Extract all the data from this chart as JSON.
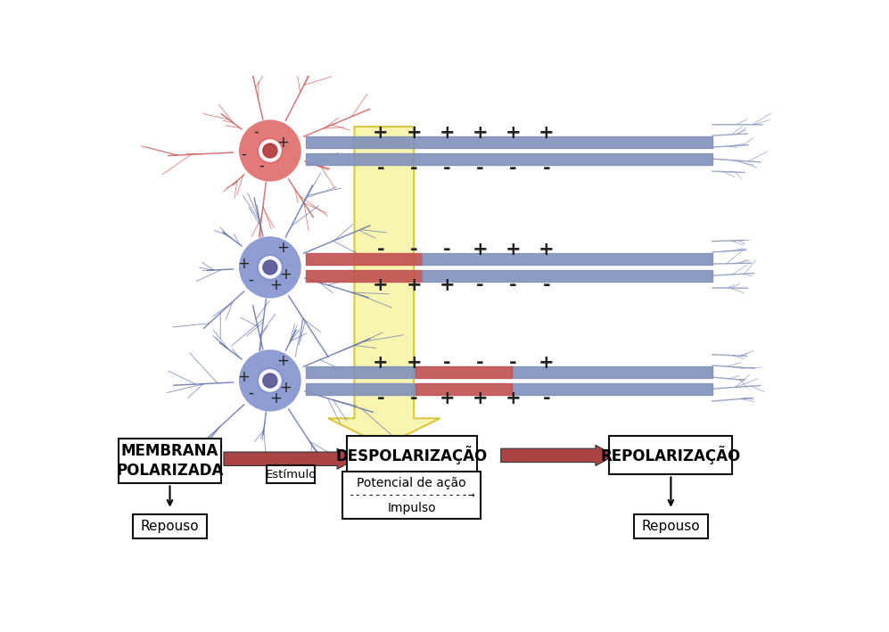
{
  "bg_color": "#ffffff",
  "row1_charges_top": [
    "+",
    "+",
    "+",
    "+",
    "+",
    "+"
  ],
  "row1_charges_bot": [
    "-",
    "-",
    "-",
    "-",
    "-",
    "-"
  ],
  "row2_charges_top": [
    "-",
    "-",
    "-",
    "+",
    "+",
    "+"
  ],
  "row2_charges_bot": [
    "+",
    "+",
    "+",
    "-",
    "-",
    "-"
  ],
  "row3_charges_top": [
    "+",
    "+",
    "-",
    "-",
    "-",
    "+"
  ],
  "row3_charges_bot": [
    "-",
    "-",
    "+",
    "+",
    "+",
    "-"
  ],
  "row1_body_signs": [
    [
      "-",
      -20,
      28
    ],
    [
      "+",
      18,
      12
    ],
    [
      "-",
      -38,
      -5
    ],
    [
      "-",
      -12,
      -22
    ]
  ],
  "row2_body_signs": [
    [
      "+",
      18,
      28
    ],
    [
      "+",
      -38,
      5
    ],
    [
      "-",
      -28,
      -18
    ],
    [
      "+",
      8,
      -26
    ],
    [
      "+",
      22,
      -10
    ]
  ],
  "row3_body_signs": [
    [
      "+",
      18,
      28
    ],
    [
      "+",
      -38,
      5
    ],
    [
      "-",
      -28,
      -18
    ],
    [
      "+",
      8,
      -26
    ],
    [
      "+",
      22,
      -10
    ]
  ],
  "soma_r1_color": "#e06868",
  "soma_r23_color": "#8090cc",
  "dendrite_r1_color": "#cc5555",
  "dendrite_r23_color": "#6070aa",
  "axon_blue": "#8090bb",
  "axon_red": "#c05050",
  "yellow_fill": "#f8f5b0",
  "yellow_edge": "#d8c840",
  "box1_text": "MEMBRANA\nPOLARIZADA",
  "box2_text": "DESPOLARIZAÇÃO",
  "box3_text": "REPOLARIZAÇÃO",
  "stimulus_text": "Estímulo",
  "potential_text": "Potencial de ação",
  "dashed_arrow_text": "------------------→",
  "impulso_text": "Impulso",
  "repouso_text": "Repouso",
  "arrow_color": "#aa4444"
}
